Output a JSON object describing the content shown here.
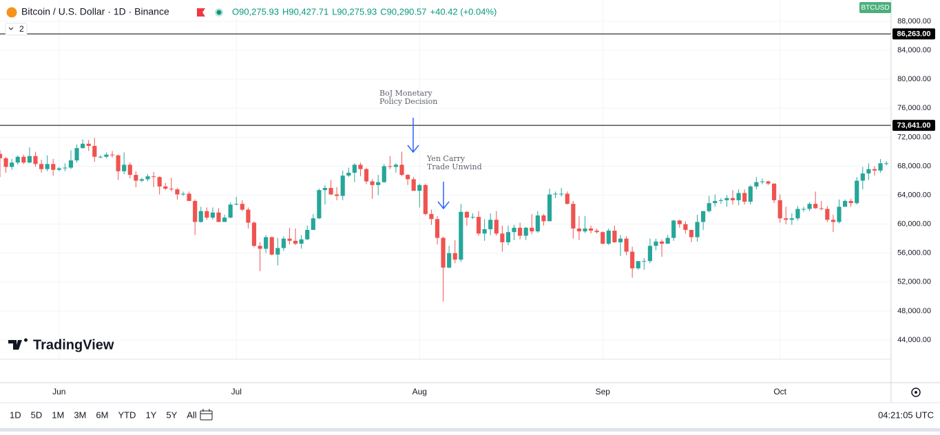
{
  "header": {
    "symbol": "Bitcoin / U.S. Dollar · 1D · Binance",
    "ohlc": [
      "O90,275.93",
      "H90,427.71",
      "L90,275.93",
      "C90,290.57",
      "+40.42 (+0.04%)"
    ],
    "indicator_count": "2",
    "ticker": "BTCUSD"
  },
  "logo": "TradingView",
  "toolbar": {
    "ranges": [
      "1D",
      "5D",
      "1M",
      "3M",
      "6M",
      "YTD",
      "1Y",
      "5Y",
      "All"
    ],
    "clock": "04:21:05 UTC"
  },
  "chart_data": {
    "type": "candlestick",
    "up_color": "#26a69a",
    "down_color": "#ef5350",
    "grid": true,
    "ylim": [
      41340,
      90945
    ],
    "xlim": [
      0,
      150.8
    ],
    "yticks": [
      {
        "value": 44000,
        "label": "44,000.00"
      },
      {
        "value": 48000,
        "label": "48,000.00"
      },
      {
        "value": 52000,
        "label": "52,000.00"
      },
      {
        "value": 56000,
        "label": "56,000.00"
      },
      {
        "value": 60000,
        "label": "60,000.00"
      },
      {
        "value": 64000,
        "label": "64,000.00"
      },
      {
        "value": 68000,
        "label": "68,000.00"
      },
      {
        "value": 72000,
        "label": "72,000.00"
      },
      {
        "value": 76000,
        "label": "76,000.00"
      },
      {
        "value": 80000,
        "label": "80,000.00"
      },
      {
        "value": 84000,
        "label": "84,000.00"
      },
      {
        "value": 88000,
        "label": "88,000.00"
      }
    ],
    "xticks": [
      {
        "value": 10,
        "label": "Jun"
      },
      {
        "value": 40,
        "label": "Jul"
      },
      {
        "value": 71,
        "label": "Aug"
      },
      {
        "value": 102,
        "label": "Sep"
      },
      {
        "value": 132,
        "label": "Oct"
      }
    ],
    "hlines": [
      {
        "value": 86263,
        "label": "86,263.00"
      },
      {
        "value": 73641,
        "label": "73,641.00"
      }
    ],
    "annotations": [
      [
        "BoJ Monetary",
        "Policy Decision"
      ],
      [
        "Yen Carry",
        "Trade Unwind"
      ]
    ],
    "ohlc": [
      [
        69700,
        70200,
        66500,
        69100
      ],
      [
        69100,
        69300,
        67100,
        67900
      ],
      [
        67900,
        69000,
        67500,
        68500
      ],
      [
        68500,
        69500,
        68200,
        69300
      ],
      [
        69300,
        69600,
        68300,
        68500
      ],
      [
        68500,
        70600,
        68400,
        69400
      ],
      [
        69400,
        70000,
        67900,
        68300
      ],
      [
        68300,
        68900,
        67100,
        67600
      ],
      [
        67600,
        69500,
        67300,
        68300
      ],
      [
        68300,
        69000,
        66700,
        67500
      ],
      [
        67500,
        67900,
        67300,
        67700
      ],
      [
        67700,
        68400,
        67300,
        67800
      ],
      [
        67800,
        70200,
        67600,
        68800
      ],
      [
        68800,
        71000,
        68500,
        70500
      ],
      [
        70500,
        71700,
        70400,
        71100
      ],
      [
        71100,
        71600,
        70100,
        70800
      ],
      [
        70800,
        71900,
        68600,
        69300
      ],
      [
        69300,
        69500,
        69100,
        69300
      ],
      [
        69300,
        69900,
        69100,
        69600
      ],
      [
        69600,
        70100,
        69200,
        69500
      ],
      [
        69500,
        69600,
        66100,
        67300
      ],
      [
        67300,
        69900,
        66900,
        68200
      ],
      [
        68200,
        68500,
        66300,
        66800
      ],
      [
        66800,
        67300,
        65100,
        66000
      ],
      [
        66000,
        66400,
        65800,
        66200
      ],
      [
        66200,
        66900,
        65900,
        66600
      ],
      [
        66600,
        67200,
        65100,
        66500
      ],
      [
        66500,
        66600,
        64100,
        65200
      ],
      [
        65200,
        65700,
        64700,
        64900
      ],
      [
        64900,
        66400,
        64500,
        64800
      ],
      [
        64800,
        65000,
        63400,
        64100
      ],
      [
        64100,
        64500,
        63900,
        64200
      ],
      [
        64200,
        64500,
        63200,
        63200
      ],
      [
        63200,
        63400,
        58500,
        60300
      ],
      [
        60300,
        62400,
        60200,
        61800
      ],
      [
        61800,
        62300,
        60600,
        60900
      ],
      [
        60900,
        62300,
        60600,
        61600
      ],
      [
        61600,
        62200,
        60300,
        60300
      ],
      [
        60300,
        61300,
        60300,
        60900
      ],
      [
        60900,
        63000,
        60800,
        62700
      ],
      [
        62700,
        63800,
        62600,
        62800
      ],
      [
        62800,
        63300,
        61800,
        62000
      ],
      [
        62000,
        62300,
        59400,
        60200
      ],
      [
        60200,
        60400,
        56800,
        57000
      ],
      [
        57000,
        57500,
        53500,
        56600
      ],
      [
        56600,
        58500,
        56000,
        58200
      ],
      [
        58200,
        58300,
        55700,
        55800
      ],
      [
        55800,
        58100,
        54300,
        56700
      ],
      [
        56700,
        58300,
        56300,
        58000
      ],
      [
        58000,
        59500,
        57200,
        57700
      ],
      [
        57700,
        59400,
        57100,
        57300
      ],
      [
        57300,
        58500,
        56600,
        57900
      ],
      [
        57900,
        59800,
        57800,
        59200
      ],
      [
        59200,
        61400,
        59200,
        60800
      ],
      [
        60800,
        64900,
        60700,
        64700
      ],
      [
        64700,
        65400,
        62700,
        65000
      ],
      [
        65000,
        66100,
        64000,
        64100
      ],
      [
        64100,
        65100,
        63300,
        63900
      ],
      [
        63900,
        67400,
        63300,
        66700
      ],
      [
        66700,
        67800,
        66500,
        67100
      ],
      [
        67100,
        68400,
        65800,
        68200
      ],
      [
        68200,
        68500,
        66600,
        67600
      ],
      [
        67600,
        67800,
        65500,
        65900
      ],
      [
        65900,
        66200,
        63500,
        65400
      ],
      [
        65400,
        66800,
        64000,
        65800
      ],
      [
        65800,
        68300,
        65700,
        68000
      ],
      [
        68000,
        69400,
        67600,
        67900
      ],
      [
        67900,
        68400,
        67100,
        68200
      ],
      [
        68200,
        70000,
        66600,
        66800
      ],
      [
        66800,
        66900,
        65400,
        66200
      ],
      [
        66200,
        66500,
        64600,
        64600
      ],
      [
        64600,
        65600,
        62300,
        65400
      ],
      [
        65400,
        65600,
        61200,
        61400
      ],
      [
        61400,
        62000,
        59900,
        60700
      ],
      [
        60700,
        61100,
        57200,
        58100
      ],
      [
        58100,
        58300,
        49300,
        54000
      ],
      [
        54000,
        57000,
        53900,
        56000
      ],
      [
        56000,
        57800,
        54600,
        55100
      ],
      [
        55100,
        62800,
        54800,
        61700
      ],
      [
        61700,
        61800,
        59800,
        60900
      ],
      [
        60900,
        61500,
        60700,
        61000
      ],
      [
        61000,
        61800,
        58400,
        58700
      ],
      [
        58700,
        60700,
        57700,
        59300
      ],
      [
        59300,
        61500,
        58500,
        60600
      ],
      [
        60600,
        61800,
        58400,
        58700
      ],
      [
        58700,
        59800,
        56200,
        57500
      ],
      [
        57500,
        59800,
        57100,
        58900
      ],
      [
        58900,
        59900,
        57800,
        59500
      ],
      [
        59500,
        60200,
        57900,
        58400
      ],
      [
        58400,
        59600,
        57800,
        59500
      ],
      [
        59500,
        61400,
        58600,
        59000
      ],
      [
        59000,
        61800,
        58800,
        61200
      ],
      [
        61200,
        61400,
        59800,
        60400
      ],
      [
        60400,
        64900,
        60400,
        64100
      ],
      [
        64100,
        64500,
        63600,
        64200
      ],
      [
        64200,
        65000,
        63800,
        64200
      ],
      [
        64200,
        64500,
        62700,
        62800
      ],
      [
        62800,
        63200,
        58000,
        59400
      ],
      [
        59400,
        61100,
        57800,
        59000
      ],
      [
        59000,
        61100,
        58800,
        59400
      ],
      [
        59400,
        59800,
        58700,
        59100
      ],
      [
        59100,
        59400,
        58700,
        58900
      ],
      [
        58900,
        59000,
        57200,
        57300
      ],
      [
        57300,
        59400,
        57100,
        59100
      ],
      [
        59100,
        59800,
        57400,
        57500
      ],
      [
        57500,
        58500,
        55600,
        58000
      ],
      [
        58000,
        58300,
        55700,
        56200
      ],
      [
        56200,
        56900,
        52600,
        53900
      ],
      [
        53900,
        54800,
        53700,
        54900
      ],
      [
        54900,
        55300,
        53700,
        54900
      ],
      [
        54900,
        58000,
        54600,
        57000
      ],
      [
        57000,
        58000,
        56400,
        57600
      ],
      [
        57600,
        57900,
        55500,
        57300
      ],
      [
        57300,
        58500,
        57300,
        58100
      ],
      [
        58100,
        60600,
        57700,
        60500
      ],
      [
        60500,
        60600,
        59500,
        60000
      ],
      [
        60000,
        60400,
        58700,
        59200
      ],
      [
        59200,
        59200,
        57500,
        58200
      ],
      [
        58200,
        61300,
        57600,
        60300
      ],
      [
        60300,
        61800,
        59200,
        61800
      ],
      [
        61800,
        63900,
        61600,
        62900
      ],
      [
        62900,
        64100,
        62400,
        63200
      ],
      [
        63200,
        63600,
        62800,
        63300
      ],
      [
        63300,
        64000,
        62400,
        63600
      ],
      [
        63600,
        64700,
        62700,
        63300
      ],
      [
        63300,
        64800,
        62600,
        64300
      ],
      [
        64300,
        64800,
        62700,
        63100
      ],
      [
        63100,
        65400,
        62700,
        65200
      ],
      [
        65200,
        66500,
        64800,
        65800
      ],
      [
        65800,
        66300,
        65500,
        65900
      ],
      [
        65900,
        66000,
        65400,
        65600
      ],
      [
        65600,
        65600,
        62900,
        63300
      ],
      [
        63300,
        64100,
        60200,
        60800
      ],
      [
        60800,
        62400,
        60000,
        60600
      ],
      [
        60600,
        61500,
        59900,
        60800
      ],
      [
        60800,
        62500,
        60500,
        62100
      ],
      [
        62100,
        62400,
        61700,
        62100
      ],
      [
        62100,
        63000,
        61800,
        62800
      ],
      [
        62800,
        64500,
        62100,
        62200
      ],
      [
        62200,
        63200,
        61900,
        62100
      ],
      [
        62100,
        62500,
        60300,
        60600
      ],
      [
        60600,
        61300,
        58900,
        60300
      ],
      [
        60300,
        63400,
        60100,
        62400
      ],
      [
        62400,
        63400,
        62400,
        63200
      ],
      [
        63200,
        63500,
        62400,
        62900
      ],
      [
        62900,
        66500,
        62700,
        66000
      ],
      [
        66000,
        67900,
        64800,
        67000
      ],
      [
        67000,
        68400,
        66100,
        67600
      ],
      [
        67600,
        68000,
        66700,
        67400
      ],
      [
        67400,
        69000,
        67100,
        68400
      ],
      [
        68400,
        68700,
        68100,
        68400
      ]
    ]
  }
}
